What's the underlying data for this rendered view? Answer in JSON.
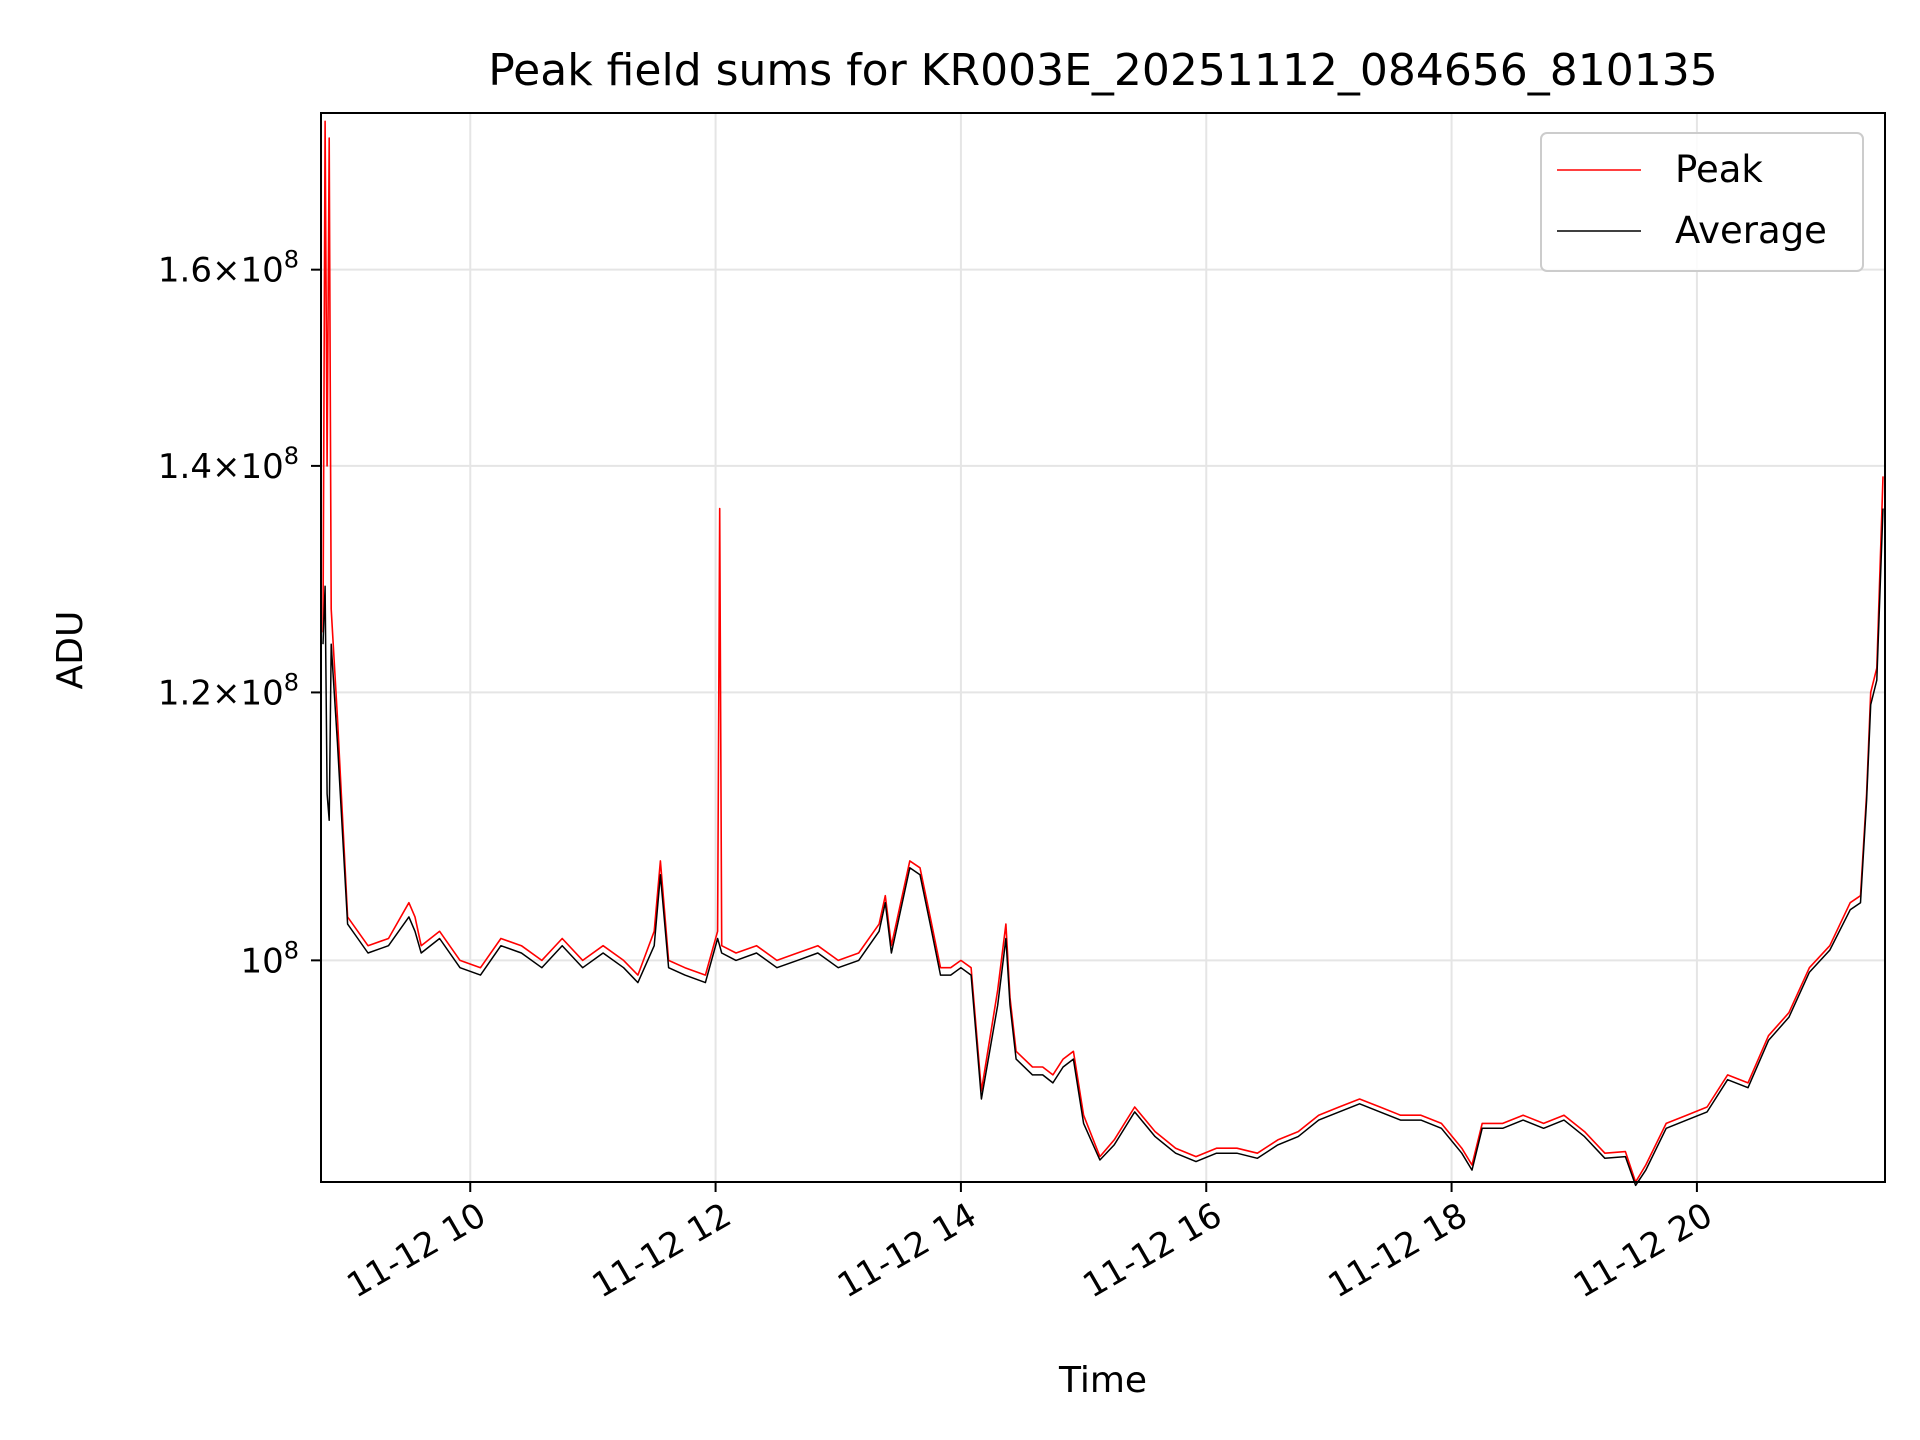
{
  "chart_data": {
    "type": "line",
    "title": "Peak field sums for KR003E_20251112_084656_810135",
    "xlabel": "Time",
    "ylabel": "ADU",
    "y_scale": "log",
    "ylim": [
      86000000,
      178000000
    ],
    "xlim": [
      "2025-11-12 08:47",
      "2025-11-12 21:32"
    ],
    "grid": true,
    "legend_position": "top-right",
    "x_ticks": [
      "2025-11-12 10:00",
      "2025-11-12 12:00",
      "2025-11-12 14:00",
      "2025-11-12 16:00",
      "2025-11-12 18:00",
      "2025-11-12 20:00"
    ],
    "x_tick_labels": [
      "11-12 10",
      "11-12 12",
      "11-12 14",
      "11-12 16",
      "11-12 18",
      "11-12 20"
    ],
    "y_ticks": [
      100000000,
      120000000,
      140000000,
      160000000
    ],
    "y_tick_labels": [
      {
        "mantissa": "",
        "exponent": "8"
      },
      {
        "mantissa": "1.2",
        "exponent": "8"
      },
      {
        "mantissa": "1.4",
        "exponent": "8"
      },
      {
        "mantissa": "1.6",
        "exponent": "8"
      }
    ],
    "series": [
      {
        "name": "Peak",
        "color": "#ff0000",
        "x": [
          "2025-11-12 08:48",
          "2025-11-12 08:49",
          "2025-11-12 08:50",
          "2025-11-12 08:51",
          "2025-11-12 08:52",
          "2025-11-12 08:55",
          "2025-11-12 09:00",
          "2025-11-12 09:05",
          "2025-11-12 09:10",
          "2025-11-12 09:20",
          "2025-11-12 09:30",
          "2025-11-12 09:33",
          "2025-11-12 09:36",
          "2025-11-12 09:45",
          "2025-11-12 09:55",
          "2025-11-12 10:05",
          "2025-11-12 10:15",
          "2025-11-12 10:25",
          "2025-11-12 10:35",
          "2025-11-12 10:45",
          "2025-11-12 10:55",
          "2025-11-12 11:05",
          "2025-11-12 11:15",
          "2025-11-12 11:22",
          "2025-11-12 11:30",
          "2025-11-12 11:33",
          "2025-11-12 11:37",
          "2025-11-12 11:45",
          "2025-11-12 11:55",
          "2025-11-12 12:01",
          "2025-11-12 12:02",
          "2025-11-12 12:03",
          "2025-11-12 12:10",
          "2025-11-12 12:20",
          "2025-11-12 12:30",
          "2025-11-12 12:40",
          "2025-11-12 12:50",
          "2025-11-12 13:00",
          "2025-11-12 13:10",
          "2025-11-12 13:20",
          "2025-11-12 13:23",
          "2025-11-12 13:26",
          "2025-11-12 13:35",
          "2025-11-12 13:40",
          "2025-11-12 13:45",
          "2025-11-12 13:50",
          "2025-11-12 13:55",
          "2025-11-12 14:00",
          "2025-11-12 14:05",
          "2025-11-12 14:10",
          "2025-11-12 14:18",
          "2025-11-12 14:22",
          "2025-11-12 14:24",
          "2025-11-12 14:27",
          "2025-11-12 14:35",
          "2025-11-12 14:40",
          "2025-11-12 14:45",
          "2025-11-12 14:50",
          "2025-11-12 14:55",
          "2025-11-12 15:00",
          "2025-11-12 15:08",
          "2025-11-12 15:15",
          "2025-11-12 15:25",
          "2025-11-12 15:35",
          "2025-11-12 15:45",
          "2025-11-12 15:55",
          "2025-11-12 16:05",
          "2025-11-12 16:15",
          "2025-11-12 16:25",
          "2025-11-12 16:35",
          "2025-11-12 16:45",
          "2025-11-12 16:55",
          "2025-11-12 17:05",
          "2025-11-12 17:15",
          "2025-11-12 17:25",
          "2025-11-12 17:35",
          "2025-11-12 17:45",
          "2025-11-12 17:55",
          "2025-11-12 18:05",
          "2025-11-12 18:10",
          "2025-11-12 18:15",
          "2025-11-12 18:25",
          "2025-11-12 18:35",
          "2025-11-12 18:45",
          "2025-11-12 18:55",
          "2025-11-12 19:05",
          "2025-11-12 19:15",
          "2025-11-12 19:25",
          "2025-11-12 19:30",
          "2025-11-12 19:35",
          "2025-11-12 19:45",
          "2025-11-12 19:55",
          "2025-11-12 20:05",
          "2025-11-12 20:15",
          "2025-11-12 20:25",
          "2025-11-12 20:35",
          "2025-11-12 20:45",
          "2025-11-12 20:55",
          "2025-11-12 21:05",
          "2025-11-12 21:15",
          "2025-11-12 21:20",
          "2025-11-12 21:23",
          "2025-11-12 21:25",
          "2025-11-12 21:28",
          "2025-11-12 21:31"
        ],
        "values": [
          125000000,
          177000000,
          140000000,
          175000000,
          127000000,
          118000000,
          103000000,
          102000000,
          101000000,
          101500000,
          104000000,
          103000000,
          101000000,
          102000000,
          100000000,
          99500000,
          101500000,
          101000000,
          100000000,
          101500000,
          100000000,
          101000000,
          100000000,
          99000000,
          102000000,
          107000000,
          100000000,
          99500000,
          99000000,
          102000000,
          136000000,
          101000000,
          100500000,
          101000000,
          100000000,
          100500000,
          101000000,
          100000000,
          100500000,
          102500000,
          104500000,
          101000000,
          107000000,
          106500000,
          103000000,
          99500000,
          99500000,
          100000000,
          99500000,
          91500000,
          98000000,
          102500000,
          97500000,
          94000000,
          93000000,
          93000000,
          92500000,
          93500000,
          94000000,
          90000000,
          87500000,
          88500000,
          90500000,
          89000000,
          88000000,
          87500000,
          88000000,
          88000000,
          87700000,
          88500000,
          89000000,
          90000000,
          90500000,
          91000000,
          90500000,
          90000000,
          90000000,
          89500000,
          88000000,
          87000000,
          89500000,
          89500000,
          90000000,
          89500000,
          90000000,
          89000000,
          87700000,
          87800000,
          86000000,
          87000000,
          89500000,
          90000000,
          90500000,
          92500000,
          92000000,
          95000000,
          96500000,
          99500000,
          101000000,
          104000000,
          104500000,
          112000000,
          120000000,
          122000000,
          139000000
        ]
      },
      {
        "name": "Average",
        "color": "#000000",
        "x": [
          "2025-11-12 08:48",
          "2025-11-12 08:49",
          "2025-11-12 08:50",
          "2025-11-12 08:51",
          "2025-11-12 08:52",
          "2025-11-12 08:55",
          "2025-11-12 09:00",
          "2025-11-12 09:05",
          "2025-11-12 09:10",
          "2025-11-12 09:20",
          "2025-11-12 09:30",
          "2025-11-12 09:33",
          "2025-11-12 09:36",
          "2025-11-12 09:45",
          "2025-11-12 09:55",
          "2025-11-12 10:05",
          "2025-11-12 10:15",
          "2025-11-12 10:25",
          "2025-11-12 10:35",
          "2025-11-12 10:45",
          "2025-11-12 10:55",
          "2025-11-12 11:05",
          "2025-11-12 11:15",
          "2025-11-12 11:22",
          "2025-11-12 11:30",
          "2025-11-12 11:33",
          "2025-11-12 11:37",
          "2025-11-12 11:45",
          "2025-11-12 11:55",
          "2025-11-12 12:01",
          "2025-11-12 12:02",
          "2025-11-12 12:03",
          "2025-11-12 12:10",
          "2025-11-12 12:20",
          "2025-11-12 12:30",
          "2025-11-12 12:40",
          "2025-11-12 12:50",
          "2025-11-12 13:00",
          "2025-11-12 13:10",
          "2025-11-12 13:20",
          "2025-11-12 13:23",
          "2025-11-12 13:26",
          "2025-11-12 13:35",
          "2025-11-12 13:40",
          "2025-11-12 13:45",
          "2025-11-12 13:50",
          "2025-11-12 13:55",
          "2025-11-12 14:00",
          "2025-11-12 14:05",
          "2025-11-12 14:10",
          "2025-11-12 14:18",
          "2025-11-12 14:22",
          "2025-11-12 14:24",
          "2025-11-12 14:27",
          "2025-11-12 14:35",
          "2025-11-12 14:40",
          "2025-11-12 14:45",
          "2025-11-12 14:50",
          "2025-11-12 14:55",
          "2025-11-12 15:00",
          "2025-11-12 15:08",
          "2025-11-12 15:15",
          "2025-11-12 15:25",
          "2025-11-12 15:35",
          "2025-11-12 15:45",
          "2025-11-12 15:55",
          "2025-11-12 16:05",
          "2025-11-12 16:15",
          "2025-11-12 16:25",
          "2025-11-12 16:35",
          "2025-11-12 16:45",
          "2025-11-12 16:55",
          "2025-11-12 17:05",
          "2025-11-12 17:15",
          "2025-11-12 17:25",
          "2025-11-12 17:35",
          "2025-11-12 17:45",
          "2025-11-12 17:55",
          "2025-11-12 18:05",
          "2025-11-12 18:10",
          "2025-11-12 18:15",
          "2025-11-12 18:25",
          "2025-11-12 18:35",
          "2025-11-12 18:45",
          "2025-11-12 18:55",
          "2025-11-12 19:05",
          "2025-11-12 19:15",
          "2025-11-12 19:25",
          "2025-11-12 19:30",
          "2025-11-12 19:35",
          "2025-11-12 19:45",
          "2025-11-12 19:55",
          "2025-11-12 20:05",
          "2025-11-12 20:15",
          "2025-11-12 20:25",
          "2025-11-12 20:35",
          "2025-11-12 20:45",
          "2025-11-12 20:55",
          "2025-11-12 21:05",
          "2025-11-12 21:15",
          "2025-11-12 21:20",
          "2025-11-12 21:23",
          "2025-11-12 21:25",
          "2025-11-12 21:28",
          "2025-11-12 21:31"
        ],
        "values": [
          124000000,
          129000000,
          112000000,
          110000000,
          124000000,
          116000000,
          102500000,
          101500000,
          100500000,
          101000000,
          103000000,
          102000000,
          100500000,
          101500000,
          99500000,
          99000000,
          101000000,
          100500000,
          99500000,
          101000000,
          99500000,
          100500000,
          99500000,
          98500000,
          101000000,
          106000000,
          99500000,
          99000000,
          98500000,
          101500000,
          101000000,
          100500000,
          100000000,
          100500000,
          99500000,
          100000000,
          100500000,
          99500000,
          100000000,
          102000000,
          104000000,
          100500000,
          106500000,
          106000000,
          102500000,
          99000000,
          99000000,
          99500000,
          99000000,
          91000000,
          97000000,
          101500000,
          97000000,
          93500000,
          92500000,
          92500000,
          92000000,
          93000000,
          93500000,
          89500000,
          87300000,
          88200000,
          90200000,
          88700000,
          87700000,
          87200000,
          87700000,
          87700000,
          87400000,
          88200000,
          88700000,
          89700000,
          90200000,
          90700000,
          90200000,
          89700000,
          89700000,
          89200000,
          87700000,
          86700000,
          89200000,
          89200000,
          89700000,
          89200000,
          89700000,
          88700000,
          87400000,
          87500000,
          85800000,
          86700000,
          89200000,
          89700000,
          90200000,
          92200000,
          91700000,
          94700000,
          96200000,
          99200000,
          100700000,
          103500000,
          104000000,
          111500000,
          119000000,
          121000000,
          136000000
        ]
      }
    ]
  }
}
